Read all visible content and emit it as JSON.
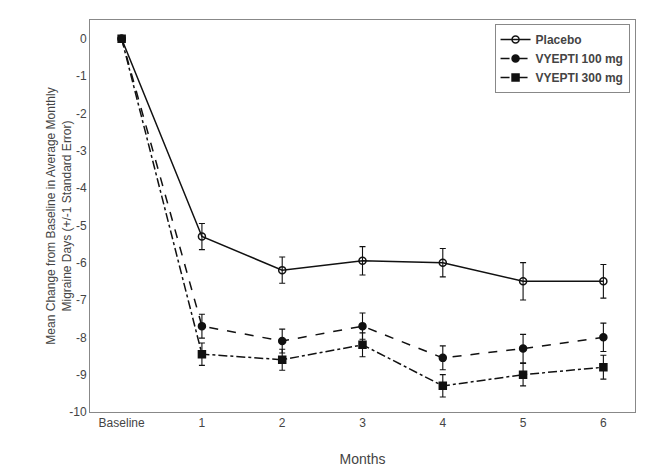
{
  "chart_data": {
    "type": "line",
    "xlabel": "Months",
    "ylabel": "Mean Change from Baseline in Average Monthly\nMigraine Days (+/-1 Standard Error)",
    "categories": [
      "Baseline",
      "1",
      "2",
      "3",
      "4",
      "5",
      "6"
    ],
    "ylim": [
      -10,
      0.5
    ],
    "yticks": [
      0,
      -1,
      -2,
      -3,
      -4,
      -5,
      -6,
      -7,
      -8,
      -9,
      -10
    ],
    "grid": false,
    "legend": "upper right",
    "series": [
      {
        "name": "Placebo",
        "color": "#111111",
        "line_style": "solid",
        "marker": "open circle",
        "values": [
          0,
          -5.3,
          -6.2,
          -5.95,
          -6.0,
          -6.5,
          -6.5
        ],
        "yerr": [
          0,
          0.35,
          0.35,
          0.38,
          0.38,
          0.5,
          0.45
        ]
      },
      {
        "name": "VYEPTI 100 mg",
        "color": "#111111",
        "line_style": "dash",
        "marker": "circle",
        "values": [
          0,
          -7.7,
          -8.1,
          -7.7,
          -8.55,
          -8.3,
          -8.0
        ],
        "yerr": [
          0,
          0.32,
          0.32,
          0.35,
          0.32,
          0.38,
          0.38
        ]
      },
      {
        "name": "VYEPTI 300 mg",
        "color": "#111111",
        "line_style": "dashdot",
        "marker": "square",
        "values": [
          0,
          -8.45,
          -8.6,
          -8.2,
          -9.3,
          -9.0,
          -8.8
        ],
        "yerr": [
          0,
          0.3,
          0.28,
          0.32,
          0.3,
          0.3,
          0.32
        ]
      }
    ]
  }
}
